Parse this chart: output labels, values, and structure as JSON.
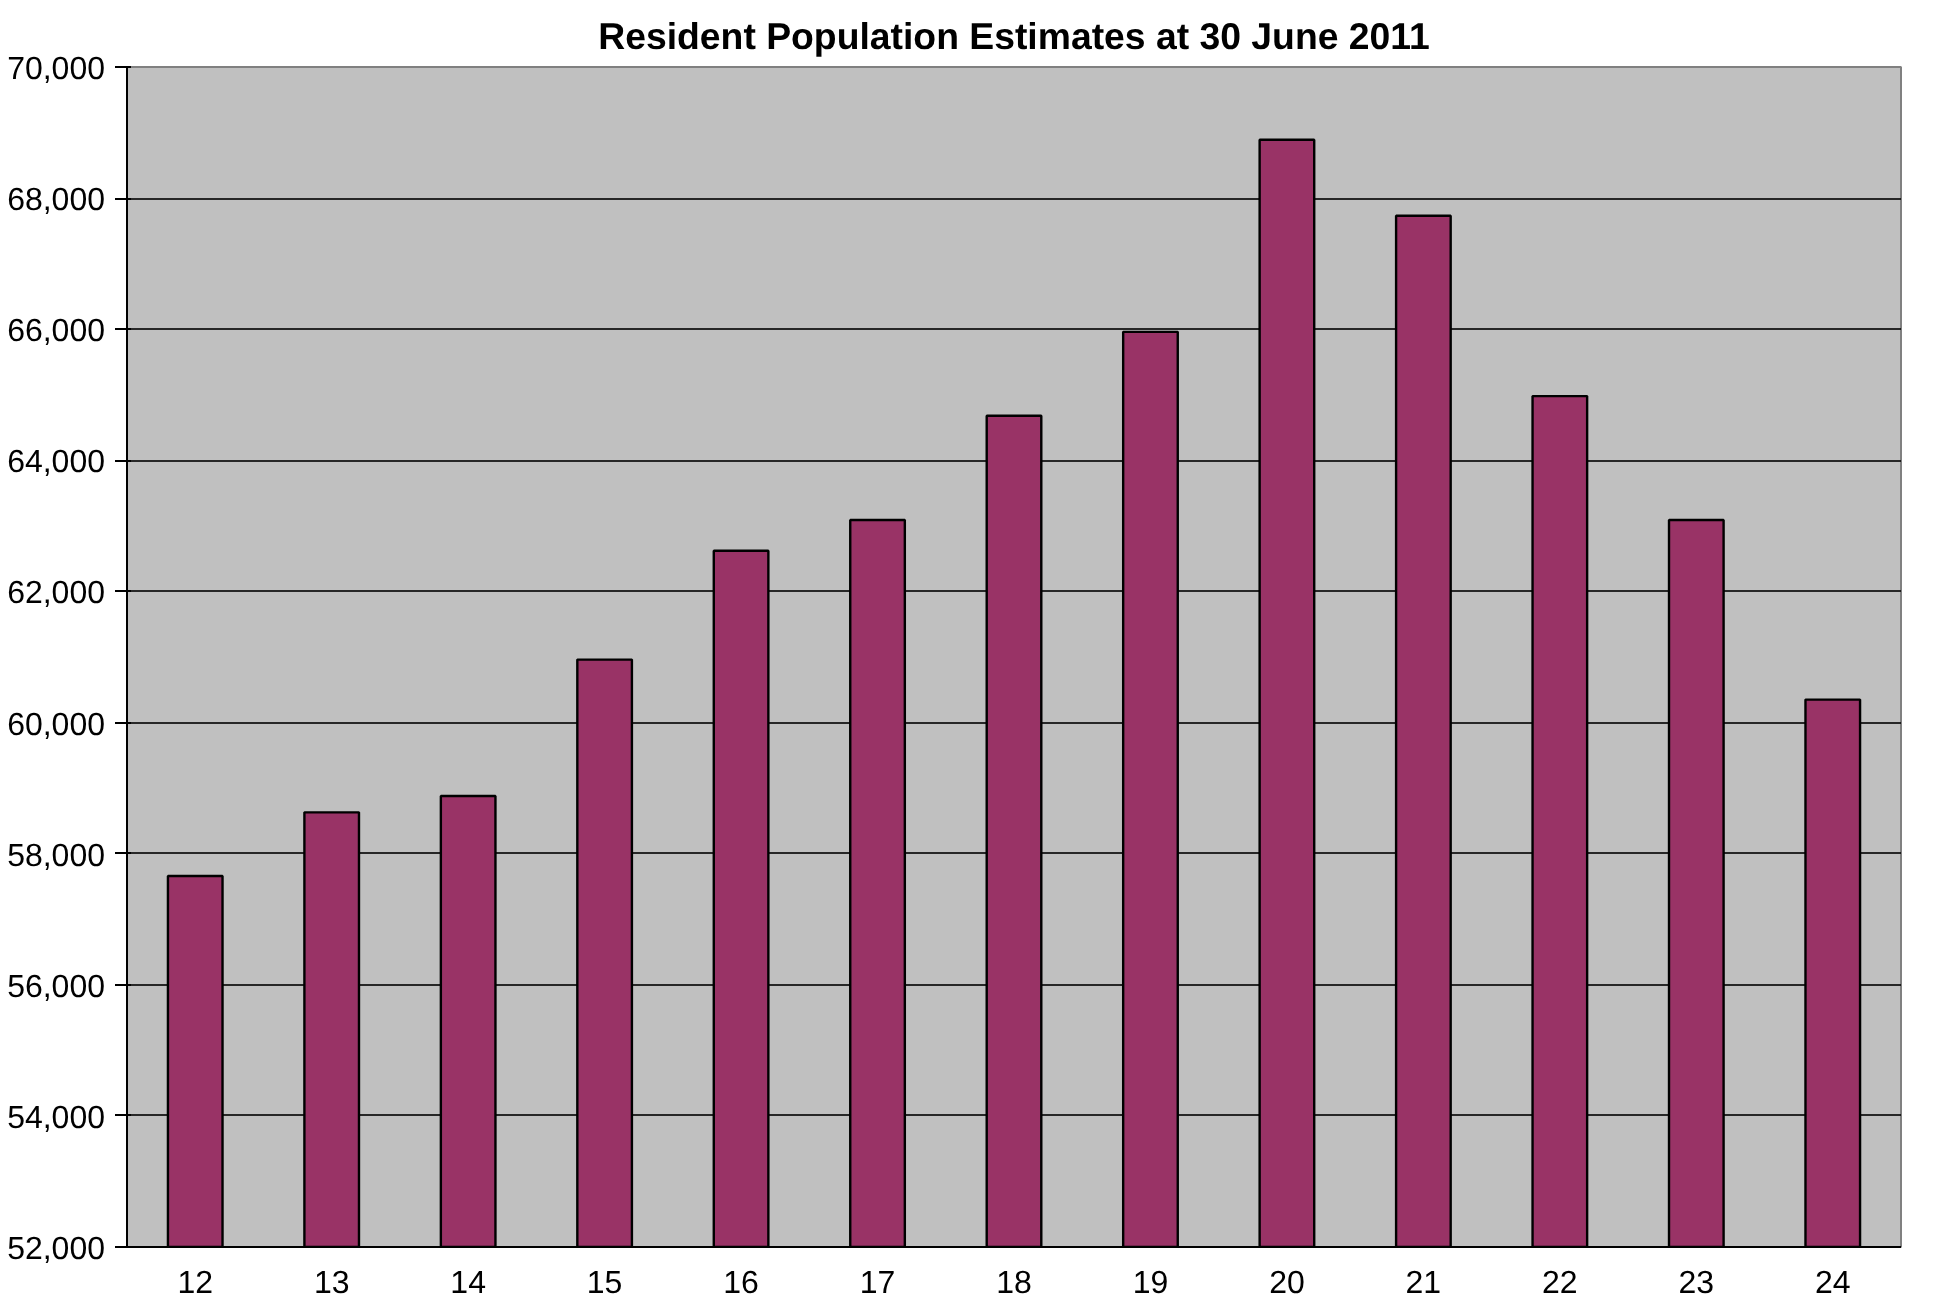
{
  "chart_data": {
    "type": "bar",
    "title": "Resident Population Estimates at 30 June 2011",
    "categories": [
      "12",
      "13",
      "14",
      "15",
      "16",
      "17",
      "18",
      "19",
      "20",
      "21",
      "22",
      "23",
      "24"
    ],
    "values": [
      57660,
      58630,
      58880,
      60960,
      62620,
      63090,
      64680,
      65960,
      68890,
      67730,
      64980,
      63090,
      60350
    ],
    "color": "#993366",
    "ylim": [
      52000,
      70000
    ],
    "yticks": [
      {
        "value": 52000,
        "label": "52,000"
      },
      {
        "value": 54000,
        "label": "54,000"
      },
      {
        "value": 56000,
        "label": "56,000"
      },
      {
        "value": 58000,
        "label": "58,000"
      },
      {
        "value": 60000,
        "label": "60,000"
      },
      {
        "value": 62000,
        "label": "62,000"
      },
      {
        "value": 64000,
        "label": "64,000"
      },
      {
        "value": 66000,
        "label": "66,000"
      },
      {
        "value": 68000,
        "label": "68,000"
      },
      {
        "value": 70000,
        "label": "70,000"
      }
    ],
    "grid": "y"
  }
}
